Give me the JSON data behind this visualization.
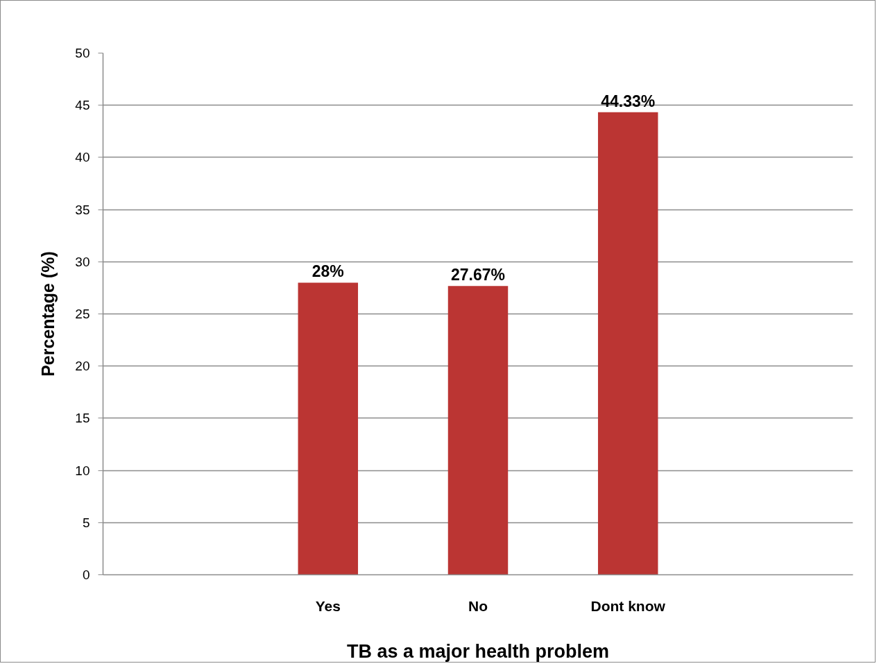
{
  "chart_data": {
    "type": "bar",
    "xlabel": "TB as a major health problem",
    "ylabel": "Percentage (%)",
    "categories": [
      null,
      "Yes",
      "No",
      "Dont know",
      null
    ],
    "values": [
      null,
      28,
      27.67,
      44.33,
      null
    ],
    "value_labels": [
      null,
      "28%",
      "27.67%",
      "44.33%",
      null
    ],
    "color": "#bb3533",
    "ylim": [
      0,
      50
    ],
    "yticks": [
      0,
      5,
      10,
      15,
      20,
      25,
      30,
      35,
      40,
      45,
      50
    ],
    "grid": "y"
  }
}
